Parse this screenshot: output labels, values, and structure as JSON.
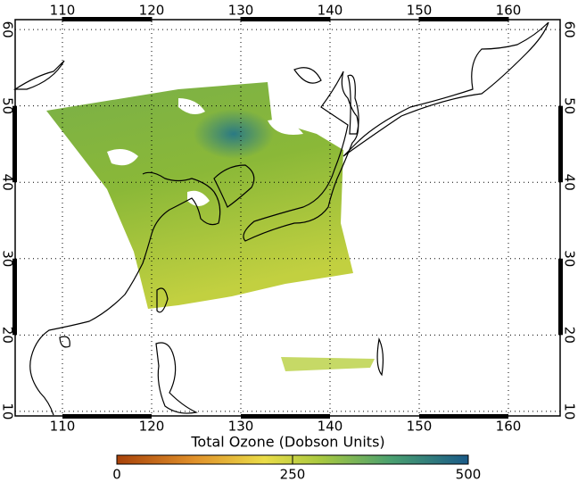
{
  "map": {
    "lon_range": [
      104.7,
      165.8
    ],
    "lat_range": [
      9.4,
      61.3
    ],
    "lon_ticks": [
      110,
      120,
      130,
      140,
      150,
      160
    ],
    "lat_ticks": [
      10,
      20,
      30,
      40,
      50,
      60
    ],
    "grid": true
  },
  "colorbar": {
    "title": "Total Ozone (Dobson Units)",
    "range": [
      0,
      500
    ],
    "ticks": [
      0,
      250,
      500
    ]
  }
}
